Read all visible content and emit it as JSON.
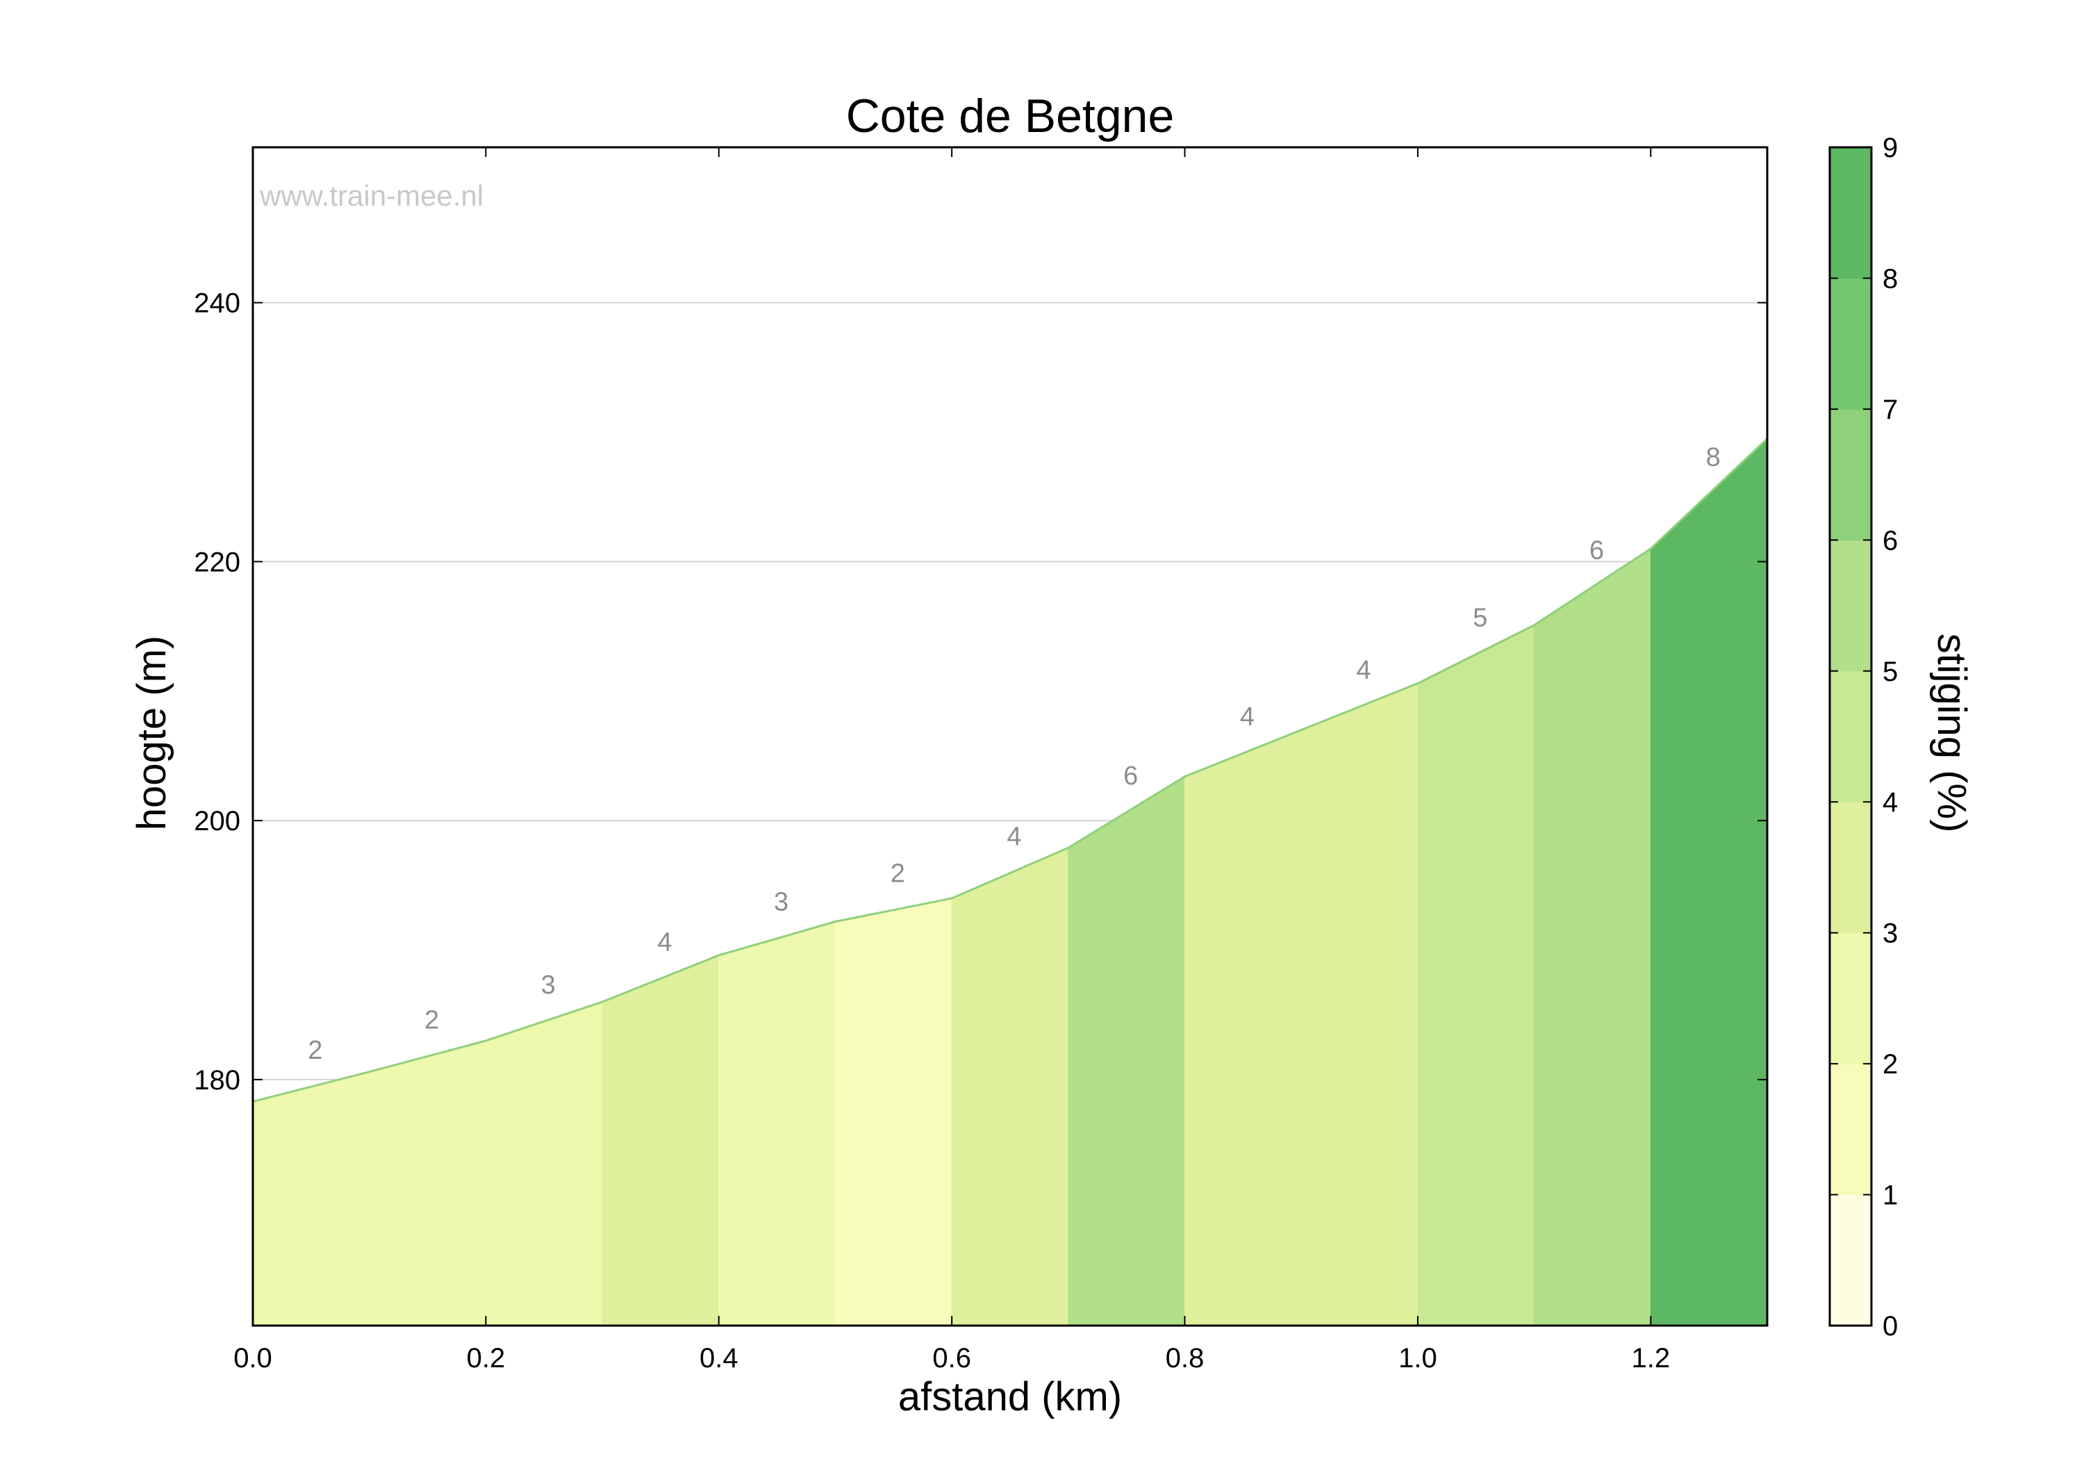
{
  "chart_data": {
    "type": "area",
    "title": "Cote de Betgne",
    "watermark": "www.train-mee.nl",
    "xlabel": "afstand (km)",
    "ylabel": "hoogte (m)",
    "xlim": [
      0,
      1.3
    ],
    "ylim": [
      161,
      252
    ],
    "xticks": [
      0.0,
      0.2,
      0.4,
      0.6,
      0.8,
      1.0,
      1.2
    ],
    "xtick_labels": [
      "0.0",
      "0.2",
      "0.4",
      "0.6",
      "0.8",
      "1.0",
      "1.2"
    ],
    "yticks": [
      180,
      200,
      220,
      240
    ],
    "ytick_labels": [
      "180",
      "200",
      "220",
      "240"
    ],
    "grid": "horizontal",
    "points": [
      {
        "x": 0.0,
        "y": 178.3
      },
      {
        "x": 0.1,
        "y": 180.6
      },
      {
        "x": 0.2,
        "y": 183.0
      },
      {
        "x": 0.3,
        "y": 186.0
      },
      {
        "x": 0.4,
        "y": 189.6
      },
      {
        "x": 0.5,
        "y": 192.2
      },
      {
        "x": 0.6,
        "y": 194.0
      },
      {
        "x": 0.7,
        "y": 197.9
      },
      {
        "x": 0.8,
        "y": 203.4
      },
      {
        "x": 0.9,
        "y": 207.0
      },
      {
        "x": 1.0,
        "y": 210.6
      },
      {
        "x": 1.1,
        "y": 215.1
      },
      {
        "x": 1.2,
        "y": 221.0
      },
      {
        "x": 1.3,
        "y": 229.5
      }
    ],
    "segments": [
      {
        "x0": 0.0,
        "x1": 0.3,
        "label": "",
        "color": "#eef9ad"
      },
      {
        "x0": 0.3,
        "x1": 0.4,
        "label": "4",
        "color": "#dff09d"
      },
      {
        "x0": 0.4,
        "x1": 0.5,
        "label": "3",
        "color": "#eef9ad"
      },
      {
        "x0": 0.5,
        "x1": 0.6,
        "label": "2",
        "color": "#f8fcbb"
      },
      {
        "x0": 0.6,
        "x1": 0.7,
        "label": "4",
        "color": "#dff09d"
      },
      {
        "x0": 0.7,
        "x1": 0.8,
        "label": "6",
        "color": "#b1df8a"
      },
      {
        "x0": 0.8,
        "x1": 1.0,
        "label": "",
        "color": "#dff09d"
      },
      {
        "x0": 1.0,
        "x1": 1.1,
        "label": "5",
        "color": "#c8e994"
      },
      {
        "x0": 1.1,
        "x1": 1.2,
        "label": "6",
        "color": "#b1df8a"
      },
      {
        "x0": 1.2,
        "x1": 1.3,
        "label": "8",
        "color": "#5cb862"
      }
    ],
    "slope_labels": [
      {
        "x": 0.05,
        "label": "2"
      },
      {
        "x": 0.15,
        "label": "2"
      },
      {
        "x": 0.25,
        "label": "3"
      },
      {
        "x": 0.35,
        "label": "4"
      },
      {
        "x": 0.45,
        "label": "3"
      },
      {
        "x": 0.55,
        "label": "2"
      },
      {
        "x": 0.65,
        "label": "4"
      },
      {
        "x": 0.75,
        "label": "6"
      },
      {
        "x": 0.85,
        "label": "4"
      },
      {
        "x": 0.95,
        "label": "4"
      },
      {
        "x": 1.05,
        "label": "5"
      },
      {
        "x": 1.15,
        "label": "6"
      },
      {
        "x": 1.25,
        "label": "8"
      }
    ],
    "colorbar": {
      "label": "stijging (%)",
      "min": 0,
      "max": 9,
      "ticks": [
        "0",
        "1",
        "2",
        "3",
        "4",
        "5",
        "6",
        "7",
        "8",
        "9"
      ],
      "colors": [
        "#fefde1",
        "#f8fcbb",
        "#eef9ad",
        "#dff09d",
        "#c8e994",
        "#b1df8a",
        "#8fd07b",
        "#74c66f",
        "#5cb862"
      ]
    },
    "line_color": "#8fd07b"
  }
}
